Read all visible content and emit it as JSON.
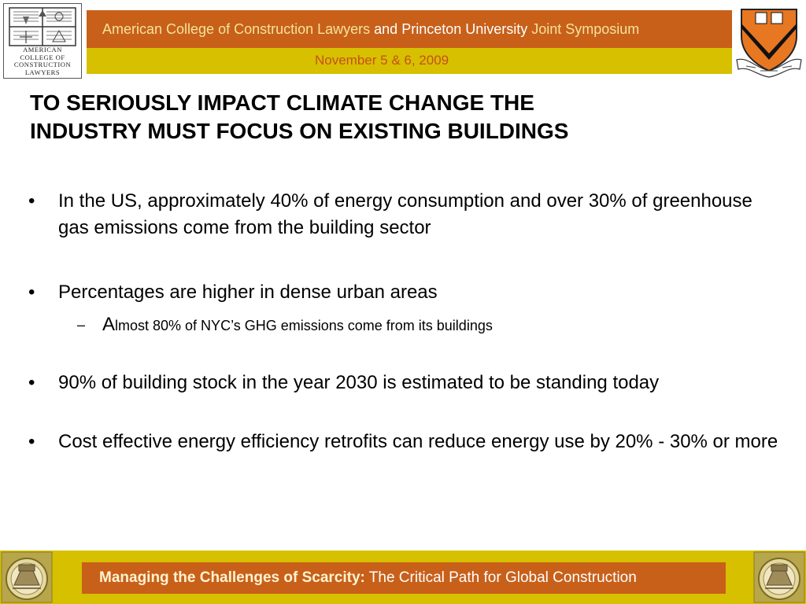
{
  "header": {
    "logo_lines": [
      "AMERICAN",
      "COLLEGE OF",
      "CONSTRUCTION",
      "LAWYERS"
    ],
    "banner_part1": "American College of Construction Lawyers ",
    "banner_part2": "and Princeton University ",
    "banner_part3": "Joint Symposium",
    "date": "November 5 & 6, 2009"
  },
  "slide": {
    "title_line1": "TO SERIOUSLY IMPACT CLIMATE CHANGE THE",
    "title_line2": "INDUSTRY MUST FOCUS ON EXISTING BUILDINGS",
    "bullet_symbol": "•",
    "bullets": [
      "In the US, approximately 40% of energy consumption and over 30% of greenhouse gas emissions come from the building sector",
      "Percentages are higher in dense urban areas",
      "90% of building stock in the year 2030 is estimated to be standing today",
      "Cost effective energy efficiency retrofits can reduce energy use by 20% - 30% or more"
    ],
    "sub_bullet": {
      "dash": "–",
      "first_letter": "A",
      "rest": "lmost 80% of NYC’s GHG emissions come from its buildings"
    }
  },
  "footer": {
    "bold_part": "Managing the Challenges of Scarcity:",
    "rest_part": " The Critical Path for Global Construction"
  },
  "colors": {
    "banner_orange": "#c8601a",
    "banner_yellow": "#d6c000",
    "princeton_orange": "#e87722"
  }
}
